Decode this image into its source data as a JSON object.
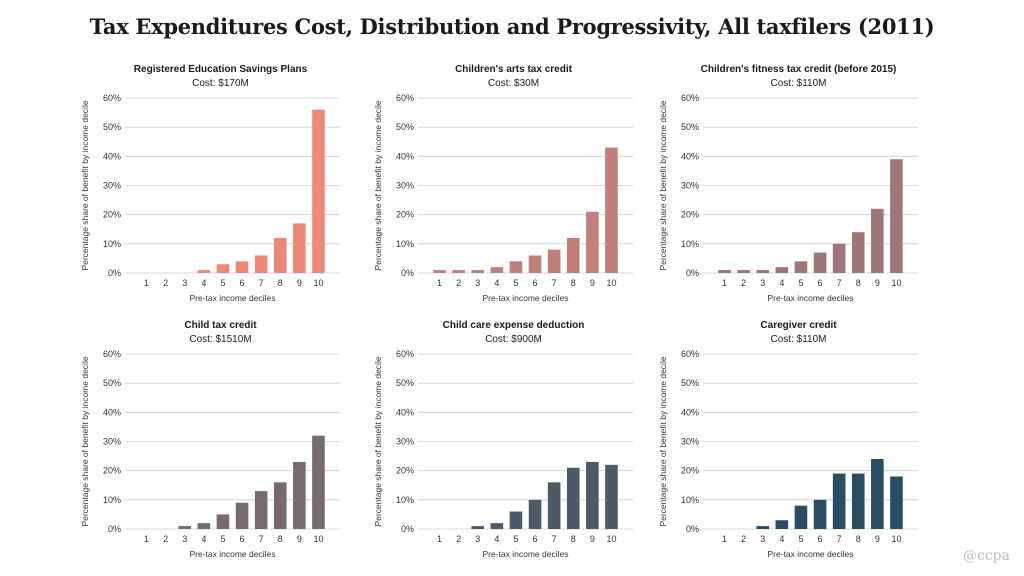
{
  "title": "Tax Expenditures Cost, Distribution and Progressivity, All taxfilers (2011)",
  "watermark": "@ccpa",
  "chart_data": [
    {
      "type": "bar",
      "title": "Registered Education Savings Plans",
      "subtitle": "Cost: $170M",
      "color": "#ee8876",
      "categories": [
        "1",
        "2",
        "3",
        "4",
        "5",
        "6",
        "7",
        "8",
        "9",
        "10"
      ],
      "values": [
        0,
        0,
        0,
        1,
        3,
        4,
        6,
        12,
        17,
        56
      ],
      "xlabel": "Pre-tax income deciles",
      "ylabel": "Percentage share of benefit by income decile",
      "yticks": [
        "0%",
        "10%",
        "20%",
        "30%",
        "40%",
        "50%",
        "60%"
      ],
      "ylim": [
        0,
        60
      ],
      "grid": true
    },
    {
      "type": "bar",
      "title": "Children's arts tax credit",
      "subtitle": "Cost: $30M",
      "color": "#c08079",
      "categories": [
        "1",
        "2",
        "3",
        "4",
        "5",
        "6",
        "7",
        "8",
        "9",
        "10"
      ],
      "values": [
        1,
        1,
        1,
        2,
        4,
        6,
        8,
        12,
        21,
        43
      ],
      "xlabel": "Pre-tax income deciles",
      "ylabel": "Percentage share of benefit by income decile",
      "yticks": [
        "0%",
        "10%",
        "20%",
        "30%",
        "40%",
        "50%",
        "60%"
      ],
      "ylim": [
        0,
        60
      ],
      "grid": true
    },
    {
      "type": "bar",
      "title": "Children's fitness tax credit (before 2015)",
      "subtitle": "Cost: $110M",
      "color": "#9e7677",
      "categories": [
        "1",
        "2",
        "3",
        "4",
        "5",
        "6",
        "7",
        "8",
        "9",
        "10"
      ],
      "values": [
        1,
        1,
        1,
        2,
        4,
        7,
        10,
        14,
        22,
        39
      ],
      "xlabel": "Pre-tax income deciles",
      "ylabel": "Percentage share of benefit by income decile",
      "yticks": [
        "0%",
        "10%",
        "20%",
        "30%",
        "40%",
        "50%",
        "60%"
      ],
      "ylim": [
        0,
        60
      ],
      "grid": true
    },
    {
      "type": "bar",
      "title": "Child tax credit",
      "subtitle": "Cost: $1510M",
      "color": "#776a71",
      "categories": [
        "1",
        "2",
        "3",
        "4",
        "5",
        "6",
        "7",
        "8",
        "9",
        "10"
      ],
      "values": [
        0,
        0,
        1,
        2,
        5,
        9,
        13,
        16,
        23,
        32
      ],
      "xlabel": "Pre-tax income deciles",
      "ylabel": "Percentage share of benefit by income decile",
      "yticks": [
        "0%",
        "10%",
        "20%",
        "30%",
        "40%",
        "50%",
        "60%"
      ],
      "ylim": [
        0,
        60
      ],
      "grid": true
    },
    {
      "type": "bar",
      "title": "Child care expense deduction",
      "subtitle": "Cost: $900M",
      "color": "#4f5a68",
      "categories": [
        "1",
        "2",
        "3",
        "4",
        "5",
        "6",
        "7",
        "8",
        "9",
        "10"
      ],
      "values": [
        0,
        0,
        1,
        2,
        6,
        10,
        16,
        21,
        23,
        22
      ],
      "xlabel": "Pre-tax income deciles",
      "ylabel": "Percentage share of benefit by income decile",
      "yticks": [
        "0%",
        "10%",
        "20%",
        "30%",
        "40%",
        "50%",
        "60%"
      ],
      "ylim": [
        0,
        60
      ],
      "grid": true
    },
    {
      "type": "bar",
      "title": "Caregiver credit",
      "subtitle": "Cost: $110M",
      "color": "#2a4d66",
      "categories": [
        "1",
        "2",
        "3",
        "4",
        "5",
        "6",
        "7",
        "8",
        "9",
        "10"
      ],
      "values": [
        0,
        0,
        1,
        3,
        8,
        10,
        19,
        19,
        24,
        18
      ],
      "xlabel": "Pre-tax income deciles",
      "ylabel": "Percentage share of benefit by income decile",
      "yticks": [
        "0%",
        "10%",
        "20%",
        "30%",
        "40%",
        "50%",
        "60%"
      ],
      "ylim": [
        0,
        60
      ],
      "grid": true
    }
  ]
}
